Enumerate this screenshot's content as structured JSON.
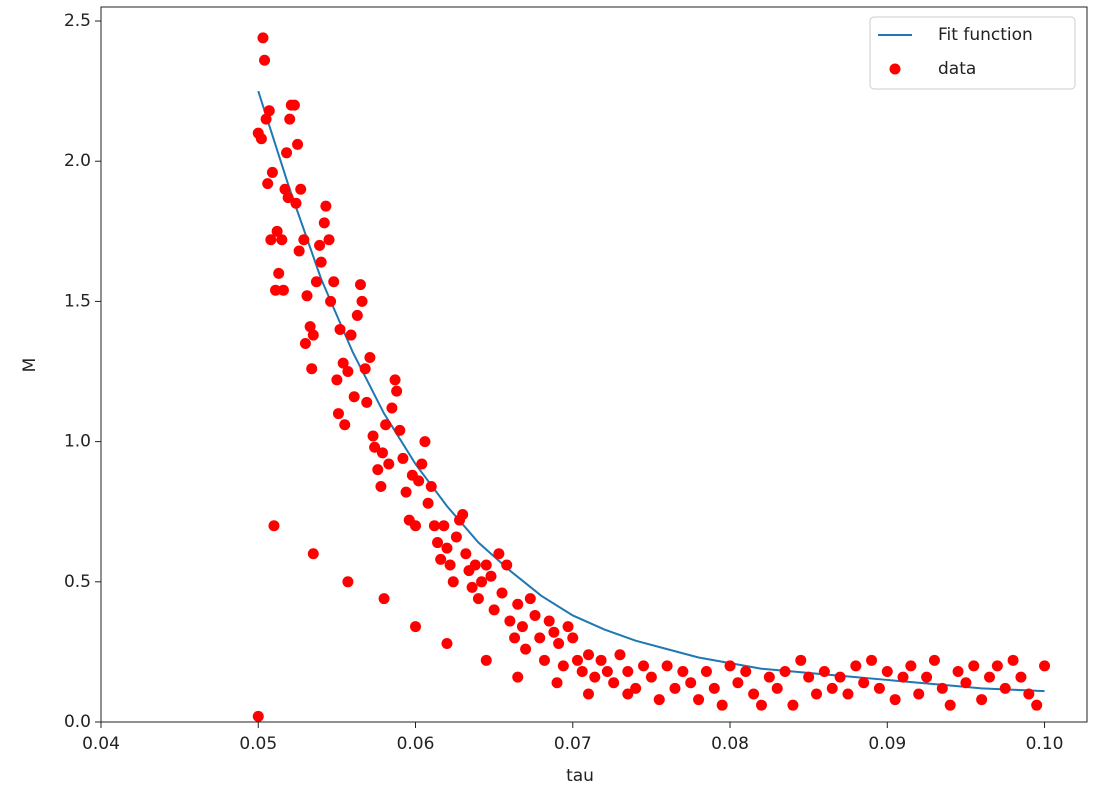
{
  "chart_data": {
    "type": "scatter",
    "xlabel": "tau",
    "ylabel": "M",
    "xlim": [
      0.04,
      0.1027
    ],
    "ylim": [
      0,
      2.55
    ],
    "xticks": [
      0.04,
      0.05,
      0.06,
      0.07,
      0.08,
      0.09,
      {
        "value": 0.1,
        "label": "0.10"
      }
    ],
    "yticks": [
      {
        "value": 0,
        "label": "0.0"
      },
      0.5,
      {
        "value": 1,
        "label": "1.0"
      },
      1.5,
      {
        "value": 2,
        "label": "2.0"
      },
      2.5
    ],
    "legend": "upper right",
    "series": [
      {
        "name": "Fit function",
        "type": "line",
        "color": "#1f77b4",
        "x": [
          0.05,
          0.052,
          0.054,
          0.056,
          0.058,
          0.06,
          0.062,
          0.064,
          0.066,
          0.068,
          0.07,
          0.072,
          0.074,
          0.076,
          0.078,
          0.08,
          0.082,
          0.084,
          0.086,
          0.088,
          0.09,
          0.092,
          0.094,
          0.096,
          0.098,
          0.1
        ],
        "values": [
          2.25,
          1.9,
          1.58,
          1.32,
          1.1,
          0.92,
          0.77,
          0.64,
          0.54,
          0.45,
          0.38,
          0.33,
          0.29,
          0.26,
          0.23,
          0.21,
          0.19,
          0.18,
          0.17,
          0.16,
          0.15,
          0.14,
          0.13,
          0.12,
          0.115,
          0.11
        ]
      },
      {
        "name": "data",
        "type": "scatter",
        "color": "#ff0000",
        "x": [
          0.05,
          0.0502,
          0.0503,
          0.0504,
          0.0505,
          0.0506,
          0.0507,
          0.0508,
          0.0509,
          0.0511,
          0.0512,
          0.0513,
          0.0515,
          0.0516,
          0.0517,
          0.0518,
          0.0519,
          0.052,
          0.0521,
          0.0523,
          0.0524,
          0.0525,
          0.0526,
          0.0527,
          0.0529,
          0.053,
          0.0531,
          0.0533,
          0.0534,
          0.0535,
          0.0537,
          0.0539,
          0.054,
          0.0542,
          0.0543,
          0.0545,
          0.0546,
          0.0548,
          0.055,
          0.0551,
          0.0552,
          0.0554,
          0.0555,
          0.0557,
          0.0559,
          0.0561,
          0.0563,
          0.0565,
          0.0566,
          0.0568,
          0.0569,
          0.0571,
          0.0573,
          0.0574,
          0.0576,
          0.0578,
          0.0579,
          0.0581,
          0.0583,
          0.0585,
          0.0587,
          0.0588,
          0.059,
          0.0592,
          0.0594,
          0.0596,
          0.0598,
          0.06,
          0.0602,
          0.0604,
          0.0606,
          0.0608,
          0.061,
          0.0612,
          0.0614,
          0.0616,
          0.0618,
          0.062,
          0.0622,
          0.0624,
          0.0626,
          0.0628,
          0.063,
          0.0632,
          0.0634,
          0.0636,
          0.0638,
          0.064,
          0.0642,
          0.0645,
          0.0648,
          0.065,
          0.0653,
          0.0655,
          0.0658,
          0.066,
          0.0663,
          0.0665,
          0.0668,
          0.067,
          0.0673,
          0.0676,
          0.0679,
          0.0682,
          0.0685,
          0.0688,
          0.0691,
          0.0694,
          0.0697,
          0.07,
          0.0703,
          0.0706,
          0.071,
          0.0714,
          0.0718,
          0.0722,
          0.0726,
          0.073,
          0.0735,
          0.074,
          0.0745,
          0.075,
          0.0755,
          0.076,
          0.0765,
          0.077,
          0.0775,
          0.078,
          0.0785,
          0.079,
          0.0795,
          0.08,
          0.0805,
          0.081,
          0.0815,
          0.082,
          0.0825,
          0.083,
          0.0835,
          0.084,
          0.0845,
          0.085,
          0.0855,
          0.086,
          0.0865,
          0.087,
          0.0875,
          0.088,
          0.0885,
          0.089,
          0.0895,
          0.09,
          0.0905,
          0.091,
          0.0915,
          0.092,
          0.0925,
          0.093,
          0.0935,
          0.094,
          0.0945,
          0.095,
          0.0955,
          0.096,
          0.0965,
          0.097,
          0.0975,
          0.098,
          0.0985,
          0.099,
          0.0995,
          0.1,
          0.05,
          0.051,
          0.0535,
          0.0557,
          0.058,
          0.06,
          0.062,
          0.0645,
          0.0665,
          0.069,
          0.071,
          0.0735
        ],
        "values": [
          2.1,
          2.08,
          2.44,
          2.36,
          2.15,
          1.92,
          2.18,
          1.72,
          1.96,
          1.54,
          1.75,
          1.6,
          1.72,
          1.54,
          1.9,
          2.03,
          1.87,
          2.15,
          2.2,
          2.2,
          1.85,
          2.06,
          1.68,
          1.9,
          1.72,
          1.35,
          1.52,
          1.41,
          1.26,
          1.38,
          1.57,
          1.7,
          1.64,
          1.78,
          1.84,
          1.72,
          1.5,
          1.57,
          1.22,
          1.1,
          1.4,
          1.28,
          1.06,
          1.25,
          1.38,
          1.16,
          1.45,
          1.56,
          1.5,
          1.26,
          1.14,
          1.3,
          1.02,
          0.98,
          0.9,
          0.84,
          0.96,
          1.06,
          0.92,
          1.12,
          1.22,
          1.18,
          1.04,
          0.94,
          0.82,
          0.72,
          0.88,
          0.7,
          0.86,
          0.92,
          1,
          0.78,
          0.84,
          0.7,
          0.64,
          0.58,
          0.7,
          0.62,
          0.56,
          0.5,
          0.66,
          0.72,
          0.74,
          0.6,
          0.54,
          0.48,
          0.56,
          0.44,
          0.5,
          0.56,
          0.52,
          0.4,
          0.6,
          0.46,
          0.56,
          0.36,
          0.3,
          0.42,
          0.34,
          0.26,
          0.44,
          0.38,
          0.3,
          0.22,
          0.36,
          0.32,
          0.28,
          0.2,
          0.34,
          0.3,
          0.22,
          0.18,
          0.24,
          0.16,
          0.22,
          0.18,
          0.14,
          0.24,
          0.18,
          0.12,
          0.2,
          0.16,
          0.08,
          0.2,
          0.12,
          0.18,
          0.14,
          0.08,
          0.18,
          0.12,
          0.06,
          0.2,
          0.14,
          0.18,
          0.1,
          0.06,
          0.16,
          0.12,
          0.18,
          0.06,
          0.22,
          0.16,
          0.1,
          0.18,
          0.12,
          0.16,
          0.1,
          0.2,
          0.14,
          0.22,
          0.12,
          0.18,
          0.08,
          0.16,
          0.2,
          0.1,
          0.16,
          0.22,
          0.12,
          0.06,
          0.18,
          0.14,
          0.2,
          0.08,
          0.16,
          0.2,
          0.12,
          0.22,
          0.16,
          0.1,
          0.06,
          0.2,
          0.02,
          0.7,
          0.6,
          0.5,
          0.44,
          0.34,
          0.28,
          0.22,
          0.16,
          0.14,
          0.1,
          0.1
        ]
      }
    ]
  }
}
